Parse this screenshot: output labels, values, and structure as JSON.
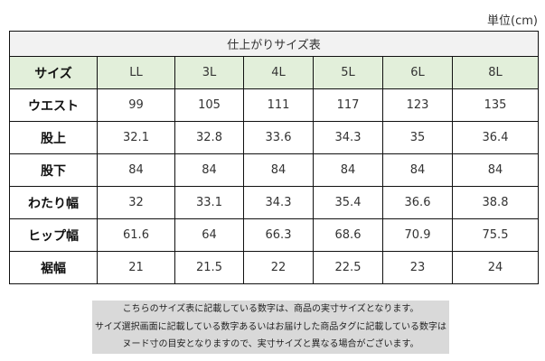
{
  "unit_label": "単位(cm)",
  "table": {
    "title": "仕上がりサイズ表",
    "header": [
      "サイズ",
      "LL",
      "3L",
      "4L",
      "5L",
      "6L",
      "8L"
    ],
    "rows": [
      {
        "label": "ウエスト",
        "values": [
          "99",
          "105",
          "111",
          "117",
          "123",
          "135"
        ]
      },
      {
        "label": "股上",
        "values": [
          "32.1",
          "32.8",
          "33.6",
          "34.3",
          "35",
          "36.4"
        ]
      },
      {
        "label": "股下",
        "values": [
          "84",
          "84",
          "84",
          "84",
          "84",
          "84"
        ]
      },
      {
        "label": "わたり幅",
        "values": [
          "32",
          "33.1",
          "34.3",
          "35.4",
          "36.6",
          "38.8"
        ]
      },
      {
        "label": "ヒップ幅",
        "values": [
          "61.6",
          "64",
          "66.3",
          "68.6",
          "70.9",
          "75.5"
        ]
      },
      {
        "label": "裾幅",
        "values": [
          "21",
          "21.5",
          "22",
          "22.5",
          "23",
          "24"
        ]
      }
    ]
  },
  "note": [
    "こちらのサイズ表に記載している数字は、商品の実寸サイズとなります。",
    "サイズ選択画面に記載している数字あるいはお届けした商品タグに記載している数字は",
    "ヌード寸の目安となりますので、実寸サイズと異なる場合がございます。"
  ],
  "colors": {
    "header_bg": "#e2efda",
    "title_bg": "#f2f2f2",
    "note_bg": "#d9d9d9"
  }
}
